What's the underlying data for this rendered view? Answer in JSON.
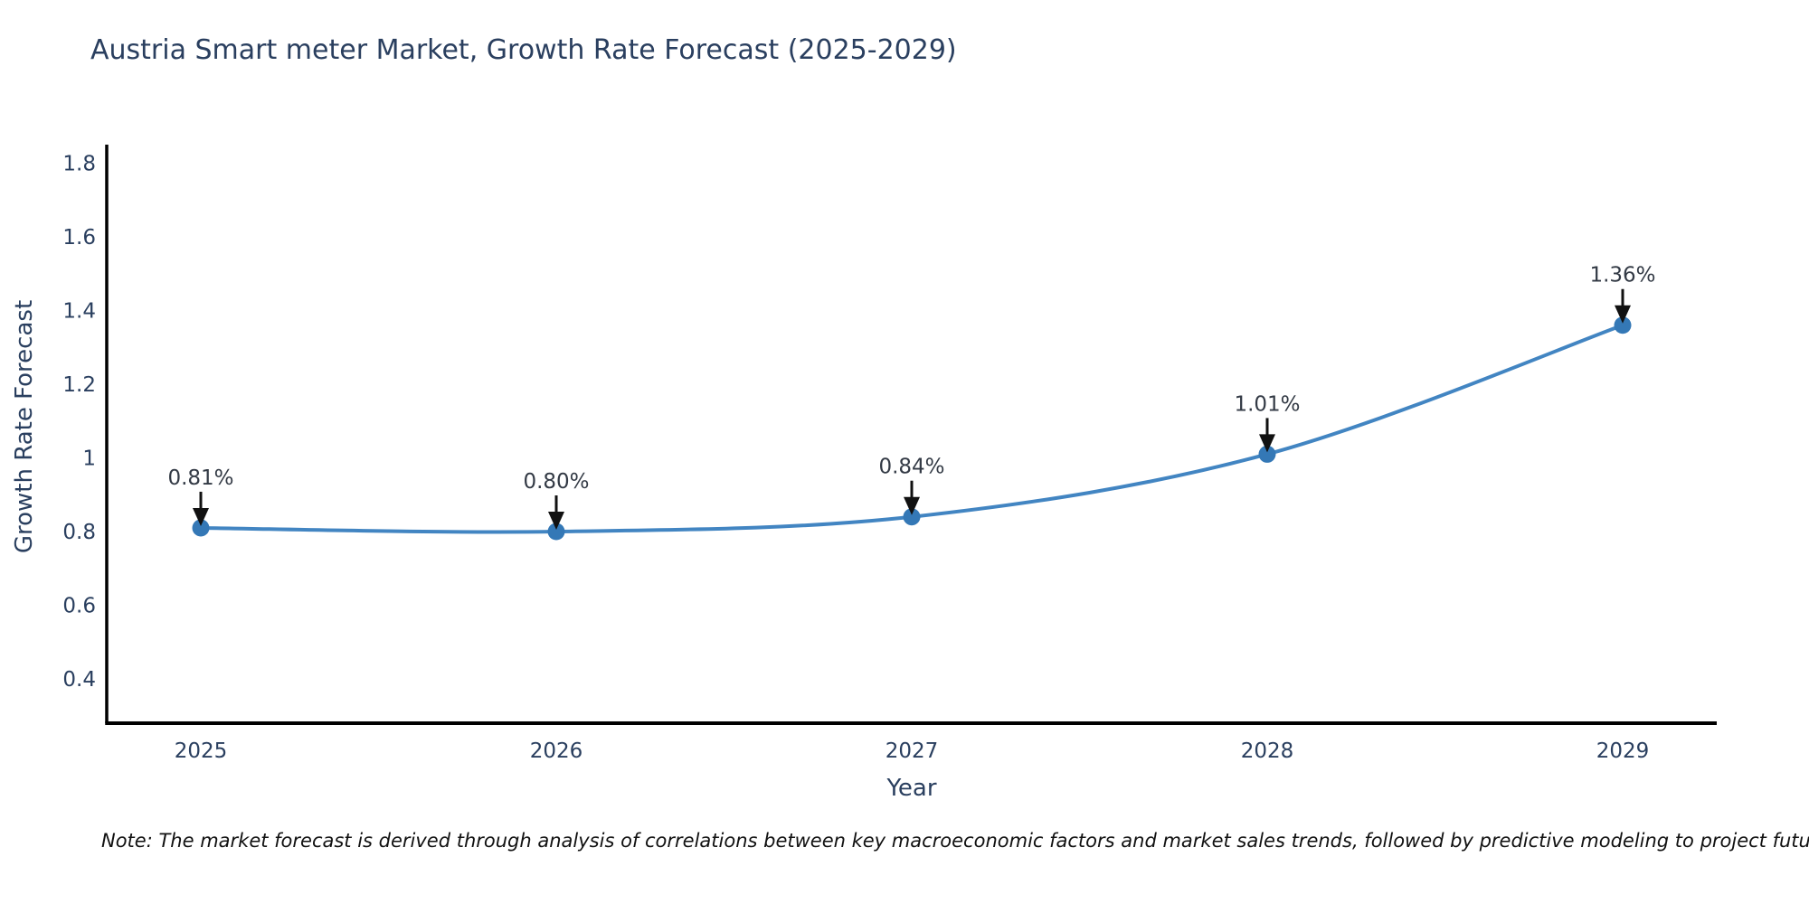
{
  "chart_data": {
    "type": "line",
    "title": "Austria Smart meter Market, Growth Rate Forecast (2025-2029)",
    "xlabel": "Year",
    "ylabel": "Growth Rate Forecast",
    "categories": [
      "2025",
      "2026",
      "2027",
      "2028",
      "2029"
    ],
    "series": [
      {
        "name": "Growth Rate Forecast",
        "values": [
          0.81,
          0.8,
          0.84,
          1.01,
          1.36
        ],
        "point_labels": [
          "0.81%",
          "0.80%",
          "0.84%",
          "1.01%",
          "1.36%"
        ]
      }
    ],
    "y_ticks": [
      0.4,
      0.6,
      0.8,
      1,
      1.2,
      1.4,
      1.6,
      1.8
    ],
    "ylim": [
      0.28,
      1.85
    ],
    "grid": false,
    "legend_position": "none",
    "line_smoothing": true,
    "colors": {
      "line": "#4285c2",
      "marker": "#3478b6",
      "axis": "#000000",
      "tick_text": "#2a3f5f",
      "annotation_text": "#333a45",
      "arrow": "#111111"
    }
  },
  "footnote": {
    "text": "Note: The market forecast is derived through analysis of correlations between key macroeconomic factors and market sales trends, followed by predictive modeling to project future sales"
  }
}
